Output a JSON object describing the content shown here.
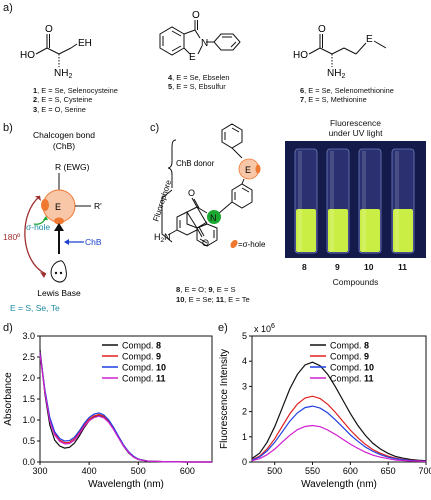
{
  "panels": {
    "a": "a)",
    "b": "b)",
    "c": "c)",
    "d": "d)",
    "e": "e)"
  },
  "panel_a": {
    "cys": {
      "ho": "HO",
      "o": "O",
      "nh2": "NH",
      "nh2_sub": "2",
      "eh": "EH",
      "lines": [
        {
          "num": "1",
          "text": ", E = Se, Selenocysteine"
        },
        {
          "num": "2",
          "text": ", E = S, Cysteine"
        },
        {
          "num": "3",
          "text": ", E = O, Serine"
        }
      ]
    },
    "ebs": {
      "o": "O",
      "e": "E",
      "n": "N",
      "lines": [
        {
          "num": "4",
          "text": ", E = Se, Ebselen"
        },
        {
          "num": "5",
          "text": ", E = S, Ebsulfur"
        }
      ]
    },
    "met": {
      "ho": "HO",
      "o": "O",
      "nh2": "NH",
      "nh2_sub": "2",
      "e": "E",
      "lines": [
        {
          "num": "6",
          "text": ", E = Se, Selenomethionine"
        },
        {
          "num": "7",
          "text": ", E = S, Methionine"
        }
      ]
    }
  },
  "panel_b": {
    "title1": "Chalcogen bond",
    "title2": "(ChB)",
    "r_ewg": "R (EWG)",
    "e": "E",
    "r_prime": "R'",
    "angle": "180º",
    "sigma_hole": "σ-hole",
    "chb": "ChB",
    "lewis_base": "Lewis Base",
    "e_list": "E = S, Se, Te"
  },
  "panel_c": {
    "chb_donor": "ChB donor",
    "fluorophore": "Fluorophore",
    "e": "E",
    "o_top": "O",
    "o_bottom": "O",
    "n": "N",
    "h2n": "H",
    "h2n_sub": "2",
    "h2n_n": "N",
    "sigma_hole": "=σ-hole",
    "line1": [
      {
        "num": "8",
        "text": ", E = O; "
      },
      {
        "num": "9",
        "text": ", E = S"
      }
    ],
    "line2": [
      {
        "num": "10",
        "text": ", E = Se; "
      },
      {
        "num": "11",
        "text": ", E = Te"
      }
    ],
    "fluor_title1": "Fluorescence",
    "fluor_title2": "under UV light",
    "vials": [
      "8",
      "9",
      "10",
      "11"
    ],
    "compounds_label": "Compounds"
  },
  "chart_data": [
    {
      "id": "d",
      "type": "line",
      "xlabel": "Wavelength (nm)",
      "ylabel": "Absorbance",
      "xlim": [
        300,
        650
      ],
      "ylim": [
        0.0,
        3.0
      ],
      "xticks": [
        300,
        400,
        500,
        600
      ],
      "yticks": [
        "0.0",
        "0.5",
        "1.0",
        "1.5",
        "2.0",
        "2.5",
        "3.0"
      ],
      "legend_position": "top-right",
      "x": [
        300,
        310,
        320,
        330,
        340,
        350,
        360,
        370,
        380,
        390,
        400,
        410,
        420,
        430,
        440,
        450,
        460,
        470,
        480,
        490,
        500,
        520,
        550,
        600,
        650
      ],
      "series": [
        {
          "name": "Compd. 8",
          "label_prefix": "Compd. ",
          "label_num": "8",
          "color": "#111111",
          "values": [
            2.68,
            1.62,
            0.88,
            0.52,
            0.38,
            0.33,
            0.35,
            0.45,
            0.62,
            0.82,
            0.98,
            1.07,
            1.1,
            1.06,
            0.95,
            0.78,
            0.58,
            0.38,
            0.22,
            0.12,
            0.06,
            0.02,
            0.01,
            0.0,
            0.0
          ]
        },
        {
          "name": "Compd. 9",
          "label_prefix": "Compd. ",
          "label_num": "9",
          "color": "#e02020",
          "values": [
            2.62,
            1.7,
            1.02,
            0.68,
            0.52,
            0.46,
            0.47,
            0.55,
            0.7,
            0.88,
            1.02,
            1.1,
            1.13,
            1.09,
            0.98,
            0.8,
            0.6,
            0.4,
            0.24,
            0.13,
            0.07,
            0.02,
            0.01,
            0.0,
            0.0
          ]
        },
        {
          "name": "Compd. 10",
          "label_prefix": "Compd. ",
          "label_num": "10",
          "color": "#1f3fe0",
          "values": [
            2.6,
            1.72,
            1.06,
            0.72,
            0.56,
            0.5,
            0.51,
            0.59,
            0.74,
            0.92,
            1.06,
            1.14,
            1.17,
            1.12,
            1.0,
            0.82,
            0.61,
            0.41,
            0.25,
            0.14,
            0.07,
            0.02,
            0.01,
            0.0,
            0.0
          ]
        },
        {
          "name": "Compd. 11",
          "label_prefix": "Compd. ",
          "label_num": "11",
          "color": "#d020d0",
          "values": [
            2.56,
            1.66,
            0.98,
            0.64,
            0.49,
            0.43,
            0.44,
            0.52,
            0.67,
            0.85,
            0.98,
            1.06,
            1.09,
            1.05,
            0.94,
            0.77,
            0.57,
            0.38,
            0.23,
            0.12,
            0.06,
            0.02,
            0.01,
            0.0,
            0.0
          ]
        }
      ]
    },
    {
      "id": "e",
      "type": "line",
      "xlabel": "Wavelength (nm)",
      "ylabel": "Fluorescence Intensity",
      "multiplier": "x 10",
      "multiplier_exp": "6",
      "xlim": [
        470,
        700
      ],
      "ylim": [
        0,
        5
      ],
      "xticks": [
        500,
        550,
        600,
        650,
        700
      ],
      "yticks": [
        "0",
        "1",
        "2",
        "3",
        "4",
        "5"
      ],
      "legend_position": "top-right",
      "x": [
        470,
        480,
        490,
        500,
        510,
        520,
        530,
        540,
        550,
        560,
        570,
        580,
        590,
        600,
        610,
        620,
        630,
        640,
        650,
        660,
        670,
        680,
        690,
        700
      ],
      "series": [
        {
          "name": "Compd. 8",
          "label_prefix": "Compd. ",
          "label_num": "8",
          "color": "#111111",
          "values": [
            0.14,
            0.35,
            0.78,
            1.4,
            2.15,
            2.9,
            3.48,
            3.85,
            3.96,
            3.82,
            3.48,
            3.0,
            2.46,
            1.93,
            1.45,
            1.05,
            0.74,
            0.51,
            0.34,
            0.22,
            0.15,
            0.1,
            0.07,
            0.05
          ]
        },
        {
          "name": "Compd. 9",
          "label_prefix": "Compd. ",
          "label_num": "9",
          "color": "#e02020",
          "values": [
            0.09,
            0.23,
            0.52,
            0.92,
            1.42,
            1.91,
            2.3,
            2.54,
            2.61,
            2.52,
            2.29,
            1.98,
            1.62,
            1.27,
            0.96,
            0.7,
            0.49,
            0.34,
            0.23,
            0.15,
            0.1,
            0.07,
            0.05,
            0.03
          ]
        },
        {
          "name": "Compd. 10",
          "label_prefix": "Compd. ",
          "label_num": "10",
          "color": "#1f3fe0",
          "values": [
            0.08,
            0.2,
            0.44,
            0.78,
            1.2,
            1.62,
            1.95,
            2.16,
            2.22,
            2.14,
            1.95,
            1.68,
            1.38,
            1.08,
            0.82,
            0.59,
            0.42,
            0.29,
            0.19,
            0.13,
            0.09,
            0.06,
            0.04,
            0.03
          ]
        },
        {
          "name": "Compd. 11",
          "label_prefix": "Compd. ",
          "label_num": "11",
          "color": "#d020d0",
          "values": [
            0.05,
            0.13,
            0.29,
            0.51,
            0.79,
            1.06,
            1.28,
            1.41,
            1.45,
            1.4,
            1.27,
            1.1,
            0.9,
            0.71,
            0.54,
            0.39,
            0.27,
            0.19,
            0.13,
            0.08,
            0.06,
            0.04,
            0.03,
            0.02
          ]
        }
      ]
    }
  ],
  "colors": {
    "orange_fill": "#f7c7a8",
    "orange_dark": "#f07830",
    "teal": "#1a8aa0",
    "maroon": "#a03030",
    "green": "#1aa830",
    "blue": "#1a40d0",
    "uv_bg": "#141a4a",
    "vial_liquid": "#d8ff40"
  }
}
